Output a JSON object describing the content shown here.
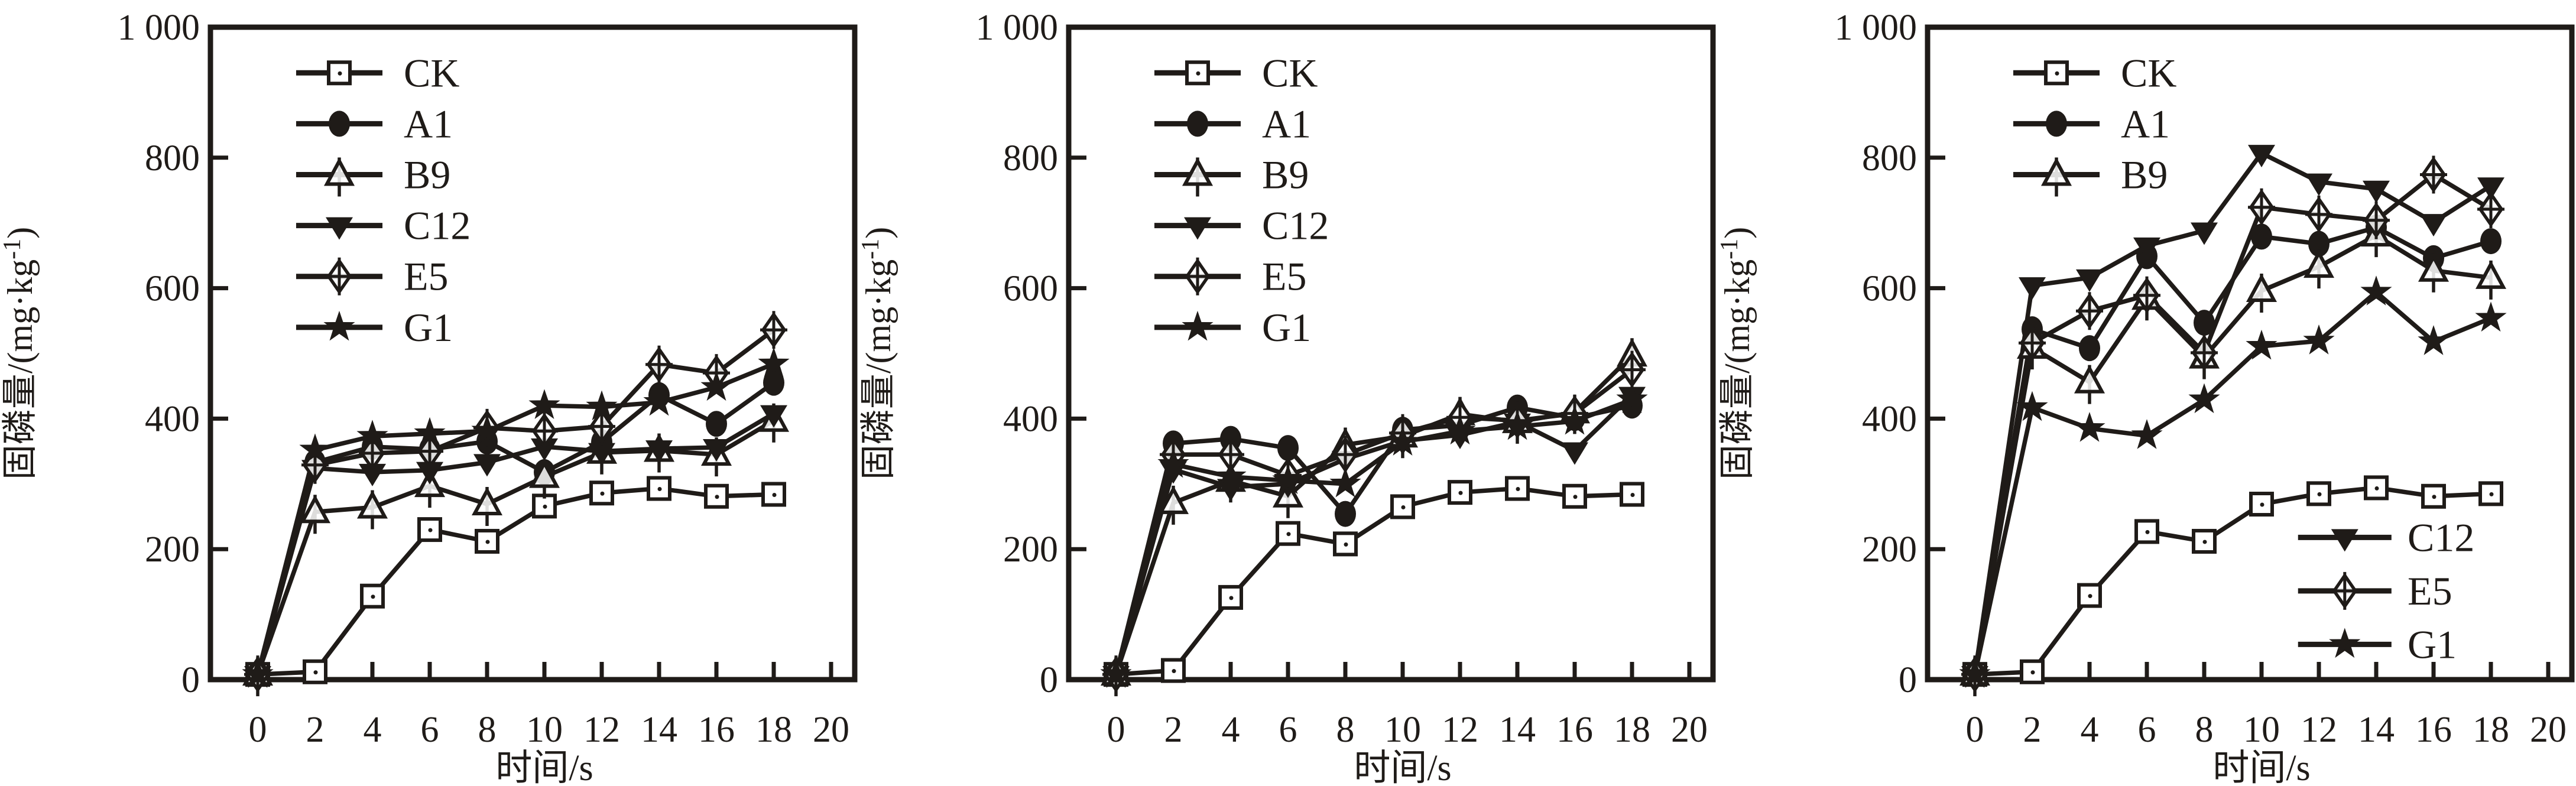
{
  "figure": {
    "background": "#ffffff",
    "ink": "#1f1b18",
    "panel_count": 3
  },
  "icons": {
    "CK": "square-open-icon",
    "A1": "circle-filled-icon",
    "B9": "triangle-up-open-icon",
    "C12": "triangle-down-filled-icon",
    "E5": "diamond-open-cross-icon",
    "G1": "star-filled-icon"
  },
  "chart_data": [
    {
      "id": "chart-1",
      "type": "line",
      "xlabel": "时间/s",
      "ylabel": "固磷量/(mg·kg⁻¹)",
      "ylabel_main": "固磷量/(mg·kg",
      "ylabel_sup": "-1",
      "ylabel_end": ")",
      "xlim": [
        0,
        20
      ],
      "ylim": [
        0,
        1000
      ],
      "grid": false,
      "legend_position": "top-left-inside",
      "xtick_values": [
        0,
        2,
        4,
        6,
        8,
        10,
        12,
        14,
        16,
        18,
        20
      ],
      "xtick_labels": [
        "0",
        "2",
        "4",
        "6",
        "8",
        "10",
        "12",
        "14",
        "16",
        "18",
        "20"
      ],
      "ytick_values": [
        0,
        200,
        400,
        600,
        800,
        1000
      ],
      "ytick_labels": [
        "0",
        "200",
        "400",
        "600",
        "800",
        "1 000"
      ],
      "x": [
        0,
        2,
        4,
        6,
        8,
        10,
        12,
        14,
        16,
        18
      ],
      "series": [
        {
          "name": "CK",
          "marker": "square-open",
          "values": [
            8,
            12,
            128,
            230,
            212,
            266,
            286,
            293,
            281,
            284
          ]
        },
        {
          "name": "A1",
          "marker": "circle-filled",
          "values": [
            8,
            333,
            357,
            353,
            365,
            318,
            364,
            436,
            392,
            455
          ]
        },
        {
          "name": "B9",
          "marker": "triangle-up-open",
          "values": [
            8,
            257,
            264,
            297,
            269,
            311,
            348,
            351,
            345,
            397
          ]
        },
        {
          "name": "C12",
          "marker": "triangle-down-filled",
          "values": [
            8,
            324,
            318,
            321,
            333,
            357,
            350,
            354,
            356,
            408
          ]
        },
        {
          "name": "E5",
          "marker": "diamond-open-cross",
          "values": [
            8,
            329,
            347,
            350,
            386,
            381,
            388,
            483,
            470,
            536
          ]
        },
        {
          "name": "G1",
          "marker": "star-filled",
          "values": [
            8,
            352,
            373,
            377,
            381,
            420,
            418,
            425,
            448,
            484
          ]
        }
      ],
      "legend_blocks": [
        {
          "rows": [
            "CK",
            "A1",
            "B9",
            "C12",
            "E5",
            "G1"
          ],
          "x_line": [
            0.133,
            0.267
          ],
          "x_label": 0.3,
          "y_top": 930,
          "y_step": 78
        }
      ]
    },
    {
      "id": "chart-2",
      "type": "line",
      "xlabel": "时间/s",
      "ylabel": "固磷量/(mg·kg⁻¹)",
      "ylabel_main": "固磷量/(mg·kg",
      "ylabel_sup": "-1",
      "ylabel_end": ")",
      "xlim": [
        0,
        20
      ],
      "ylim": [
        0,
        1000
      ],
      "grid": false,
      "legend_position": "top-left-inside",
      "xtick_values": [
        0,
        2,
        4,
        6,
        8,
        10,
        12,
        14,
        16,
        18,
        20
      ],
      "xtick_labels": [
        "0",
        "2",
        "4",
        "6",
        "8",
        "10",
        "12",
        "14",
        "16",
        "18",
        "20"
      ],
      "ytick_values": [
        0,
        200,
        400,
        600,
        800,
        1000
      ],
      "ytick_labels": [
        "0",
        "200",
        "400",
        "600",
        "800",
        "1 000"
      ],
      "x": [
        0,
        2,
        4,
        6,
        8,
        10,
        12,
        14,
        16,
        18
      ],
      "series": [
        {
          "name": "CK",
          "marker": "square-open",
          "values": [
            8,
            14,
            126,
            224,
            208,
            265,
            287,
            293,
            281,
            284
          ]
        },
        {
          "name": "A1",
          "marker": "circle-filled",
          "values": [
            8,
            362,
            369,
            355,
            254,
            383,
            390,
            417,
            401,
            420
          ]
        },
        {
          "name": "B9",
          "marker": "triangle-up-open",
          "values": [
            8,
            271,
            305,
            281,
            360,
            373,
            407,
            395,
            410,
            497
          ]
        },
        {
          "name": "C12",
          "marker": "triangle-down-filled",
          "values": [
            8,
            322,
            295,
            300,
            338,
            366,
            375,
            395,
            351,
            436
          ]
        },
        {
          "name": "E5",
          "marker": "diamond-open-cross",
          "values": [
            8,
            345,
            345,
            313,
            345,
            378,
            402,
            397,
            408,
            475
          ]
        },
        {
          "name": "G1",
          "marker": "star-filled",
          "values": [
            8,
            330,
            311,
            305,
            300,
            364,
            381,
            388,
            396,
            429
          ]
        }
      ],
      "legend_blocks": [
        {
          "rows": [
            "CK",
            "A1",
            "B9",
            "C12",
            "E5",
            "G1"
          ],
          "x_line": [
            0.133,
            0.267
          ],
          "x_label": 0.3,
          "y_top": 930,
          "y_step": 78
        }
      ]
    },
    {
      "id": "chart-3",
      "type": "line",
      "xlabel": "时间/s",
      "ylabel": "固磷量/(mg·kg⁻¹)",
      "ylabel_main": "固磷量/(mg·kg",
      "ylabel_sup": "-1",
      "ylabel_end": ")",
      "xlim": [
        0,
        20
      ],
      "ylim": [
        0,
        1000
      ],
      "grid": false,
      "legend_position": "split-top-left-and-bottom-right",
      "xtick_values": [
        0,
        2,
        4,
        6,
        8,
        10,
        12,
        14,
        16,
        18,
        20
      ],
      "xtick_labels": [
        "0",
        "2",
        "4",
        "6",
        "8",
        "10",
        "12",
        "14",
        "16",
        "18",
        "20"
      ],
      "ytick_values": [
        0,
        200,
        400,
        600,
        800,
        1000
      ],
      "ytick_labels": [
        "0",
        "200",
        "400",
        "600",
        "800",
        "1 000"
      ],
      "x": [
        0,
        2,
        4,
        6,
        8,
        10,
        12,
        14,
        16,
        18
      ],
      "series": [
        {
          "name": "CK",
          "marker": "square-open",
          "values": [
            8,
            12,
            129,
            227,
            212,
            269,
            285,
            294,
            281,
            285
          ]
        },
        {
          "name": "A1",
          "marker": "circle-filled",
          "values": [
            8,
            537,
            508,
            649,
            547,
            679,
            668,
            693,
            646,
            672
          ]
        },
        {
          "name": "B9",
          "marker": "triangle-up-open",
          "values": [
            8,
            509,
            456,
            584,
            494,
            596,
            633,
            681,
            627,
            616
          ]
        },
        {
          "name": "C12",
          "marker": "triangle-down-filled",
          "values": [
            8,
            604,
            616,
            665,
            688,
            807,
            763,
            752,
            701,
            757
          ]
        },
        {
          "name": "E5",
          "marker": "diamond-open-cross",
          "values": [
            8,
            516,
            565,
            589,
            501,
            724,
            713,
            704,
            774,
            721
          ]
        },
        {
          "name": "G1",
          "marker": "star-filled",
          "values": [
            8,
            417,
            385,
            374,
            429,
            511,
            519,
            594,
            518,
            554
          ]
        }
      ],
      "legend_blocks": [
        {
          "rows": [
            "CK",
            "A1",
            "B9"
          ],
          "x_line": [
            0.133,
            0.267
          ],
          "x_label": 0.3,
          "y_top": 930,
          "y_step": 78
        },
        {
          "rows": [
            "C12",
            "E5",
            "G1"
          ],
          "x_line": [
            0.575,
            0.72
          ],
          "x_label": 0.745,
          "y_top": 218,
          "y_step": 82
        }
      ]
    }
  ]
}
